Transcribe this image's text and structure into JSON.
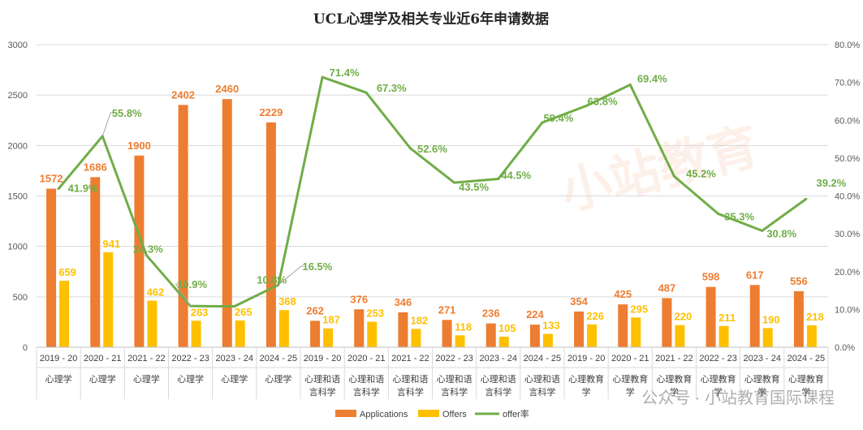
{
  "colors": {
    "applications": "#ED7D31",
    "offers": "#FFC000",
    "rate": "#70AD47",
    "grid": "#D9D9D9",
    "axis": "#BFBFBF"
  },
  "watermark": {
    "brand": "小站教育",
    "footer_text": "公众号 · 小站教育国际课程"
  },
  "chart_data": {
    "type": "bar",
    "title": "UCL心理学及相关专业近6年申请数据",
    "categories": [
      {
        "year": "2019 - 20",
        "program": [
          "心理学"
        ]
      },
      {
        "year": "2020 - 21",
        "program": [
          "心理学"
        ]
      },
      {
        "year": "2021 - 22",
        "program": [
          "心理学"
        ]
      },
      {
        "year": "2022 - 23",
        "program": [
          "心理学"
        ]
      },
      {
        "year": "2023 - 24",
        "program": [
          "心理学"
        ]
      },
      {
        "year": "2024 - 25",
        "program": [
          "心理学"
        ]
      },
      {
        "year": "2019 - 20",
        "program": [
          "心理和语",
          "言科学"
        ]
      },
      {
        "year": "2020 - 21",
        "program": [
          "心理和语",
          "言科学"
        ]
      },
      {
        "year": "2021 - 22",
        "program": [
          "心理和语",
          "言科学"
        ]
      },
      {
        "year": "2022 - 23",
        "program": [
          "心理和语",
          "言科学"
        ]
      },
      {
        "year": "2023 - 24",
        "program": [
          "心理和语",
          "言科学"
        ]
      },
      {
        "year": "2024 - 25",
        "program": [
          "心理和语",
          "言科学"
        ]
      },
      {
        "year": "2019 - 20",
        "program": [
          "心理教育",
          "学"
        ]
      },
      {
        "year": "2020 - 21",
        "program": [
          "心理教育",
          "学"
        ]
      },
      {
        "year": "2021 - 22",
        "program": [
          "心理教育",
          "学"
        ]
      },
      {
        "year": "2022 - 23",
        "program": [
          "心理教育",
          "学"
        ]
      },
      {
        "year": "2023 - 24",
        "program": [
          "心理教育",
          "学"
        ]
      },
      {
        "year": "2024 - 25",
        "program": [
          "心理教育",
          "学"
        ]
      }
    ],
    "series": [
      {
        "name": "Applications",
        "type": "bar",
        "axis": "left",
        "values": [
          1572,
          1686,
          1900,
          2402,
          2460,
          2229,
          262,
          376,
          346,
          271,
          236,
          224,
          354,
          425,
          487,
          598,
          617,
          556
        ]
      },
      {
        "name": "Offers",
        "type": "bar",
        "axis": "left",
        "values": [
          659,
          941,
          462,
          263,
          265,
          368,
          187,
          253,
          182,
          118,
          105,
          133,
          226,
          295,
          220,
          211,
          190,
          218
        ]
      },
      {
        "name": "offer率",
        "type": "line",
        "axis": "right",
        "values": [
          41.9,
          55.8,
          24.3,
          10.9,
          10.8,
          16.5,
          71.4,
          67.3,
          52.6,
          43.5,
          44.5,
          59.4,
          63.8,
          69.4,
          45.2,
          35.3,
          30.8,
          39.2
        ]
      }
    ],
    "y_left": {
      "min": 0,
      "max": 3000,
      "step": 500,
      "tick_labels": [
        "0",
        "500",
        "1000",
        "1500",
        "2000",
        "2500",
        "3000"
      ]
    },
    "y_right": {
      "min": 0,
      "max": 80,
      "step": 10,
      "tick_labels": [
        "0.0%",
        "10.0%",
        "20.0%",
        "30.0%",
        "40.0%",
        "50.0%",
        "60.0%",
        "70.0%",
        "80.0%"
      ]
    },
    "grid": true,
    "legend": {
      "position": "bottom",
      "items": [
        "Applications",
        "Offers",
        "offer率"
      ]
    }
  }
}
